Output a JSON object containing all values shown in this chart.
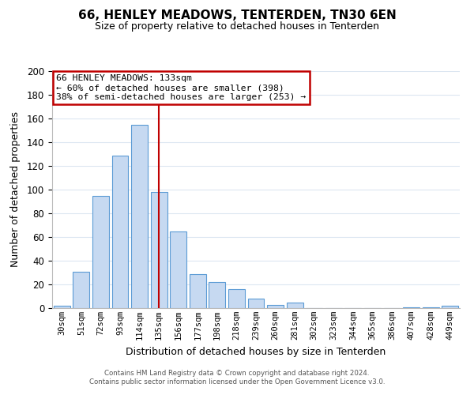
{
  "title": "66, HENLEY MEADOWS, TENTERDEN, TN30 6EN",
  "subtitle": "Size of property relative to detached houses in Tenterden",
  "xlabel": "Distribution of detached houses by size in Tenterden",
  "ylabel": "Number of detached properties",
  "bar_labels": [
    "30sqm",
    "51sqm",
    "72sqm",
    "93sqm",
    "114sqm",
    "135sqm",
    "156sqm",
    "177sqm",
    "198sqm",
    "218sqm",
    "239sqm",
    "260sqm",
    "281sqm",
    "302sqm",
    "323sqm",
    "344sqm",
    "365sqm",
    "386sqm",
    "407sqm",
    "428sqm",
    "449sqm"
  ],
  "bar_values": [
    2,
    31,
    95,
    129,
    155,
    98,
    65,
    29,
    22,
    16,
    8,
    3,
    5,
    0,
    0,
    0,
    0,
    0,
    1,
    1,
    2
  ],
  "bar_color": "#c6d9f1",
  "bar_edge_color": "#5b9bd5",
  "vline_x": 5,
  "vline_color": "#c00000",
  "ylim": [
    0,
    200
  ],
  "yticks": [
    0,
    20,
    40,
    60,
    80,
    100,
    120,
    140,
    160,
    180,
    200
  ],
  "annotation_title": "66 HENLEY MEADOWS: 133sqm",
  "annotation_line1": "← 60% of detached houses are smaller (398)",
  "annotation_line2": "38% of semi-detached houses are larger (253) →",
  "annotation_box_color": "#ffffff",
  "annotation_box_edge": "#c00000",
  "footer_line1": "Contains HM Land Registry data © Crown copyright and database right 2024.",
  "footer_line2": "Contains public sector information licensed under the Open Government Licence v3.0.",
  "background_color": "#ffffff",
  "grid_color": "#dce6f1"
}
